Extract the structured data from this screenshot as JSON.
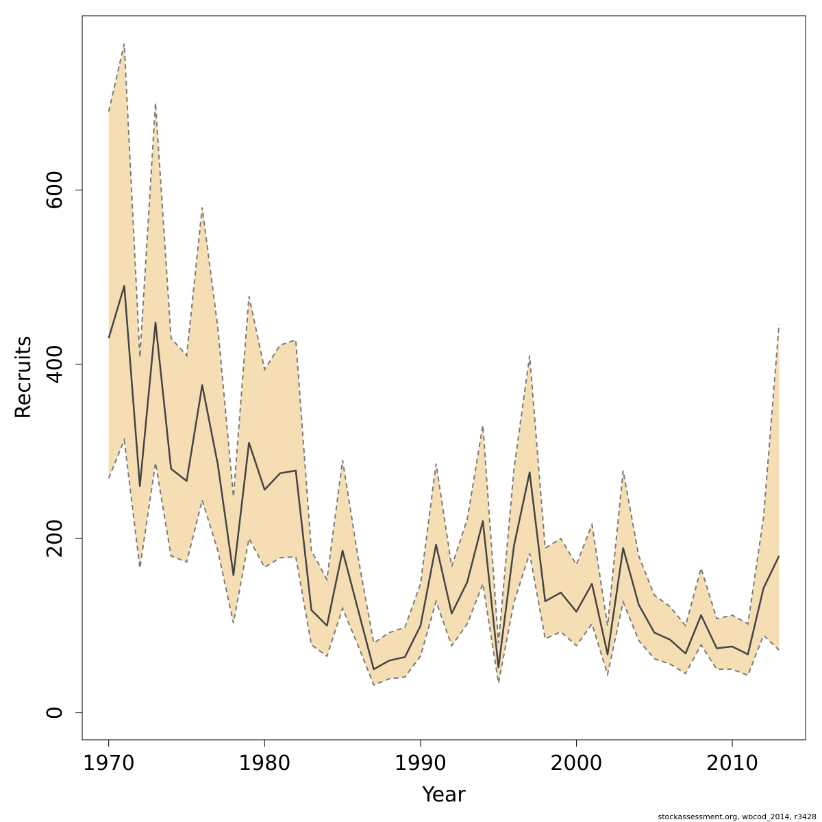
{
  "chart_data": {
    "type": "area",
    "xlabel": "Year",
    "ylabel": "Recruits",
    "xlim": [
      1968.3,
      2014.7
    ],
    "ylim": [
      -31,
      800
    ],
    "xticks": [
      1970,
      1980,
      1990,
      2000,
      2010
    ],
    "yticks": [
      0,
      200,
      400,
      600
    ],
    "grid": false,
    "colors": {
      "band_fill": "#f5deb3",
      "median_line": "#444444",
      "bound_line": "#7a7a7a",
      "frame": "#000000"
    },
    "x": [
      1970,
      1971,
      1972,
      1973,
      1974,
      1975,
      1976,
      1977,
      1978,
      1979,
      1980,
      1981,
      1982,
      1983,
      1984,
      1985,
      1986,
      1987,
      1988,
      1989,
      1990,
      1991,
      1992,
      1993,
      1994,
      1995,
      1996,
      1997,
      1998,
      1999,
      2000,
      2001,
      2002,
      2003,
      2004,
      2005,
      2006,
      2007,
      2008,
      2009,
      2010,
      2011,
      2012,
      2013
    ],
    "median": [
      430,
      490,
      260,
      448,
      280,
      266,
      376,
      285,
      158,
      310,
      256,
      275,
      278,
      118,
      100,
      186,
      118,
      50,
      60,
      64,
      100,
      193,
      114,
      150,
      220,
      52,
      192,
      276,
      128,
      138,
      116,
      148,
      67,
      189,
      124,
      92,
      84,
      68,
      112,
      74,
      76,
      67,
      143,
      180
    ],
    "upper": [
      690,
      768,
      408,
      700,
      430,
      410,
      580,
      442,
      248,
      478,
      394,
      422,
      428,
      186,
      153,
      290,
      178,
      80,
      92,
      98,
      148,
      286,
      168,
      222,
      330,
      80,
      280,
      410,
      189,
      200,
      170,
      216,
      100,
      278,
      180,
      135,
      122,
      100,
      166,
      108,
      112,
      102,
      224,
      446
    ],
    "lower": [
      269,
      313,
      166,
      287,
      180,
      173,
      244,
      186,
      103,
      200,
      167,
      178,
      179,
      78,
      65,
      120,
      77,
      32,
      39,
      41,
      65,
      128,
      77,
      102,
      148,
      34,
      127,
      183,
      85,
      93,
      77,
      102,
      44,
      127,
      83,
      62,
      56,
      45,
      78,
      50,
      50,
      43,
      89,
      72
    ]
  },
  "footer": "stockassessment.org, wbcod_2014, r3428"
}
